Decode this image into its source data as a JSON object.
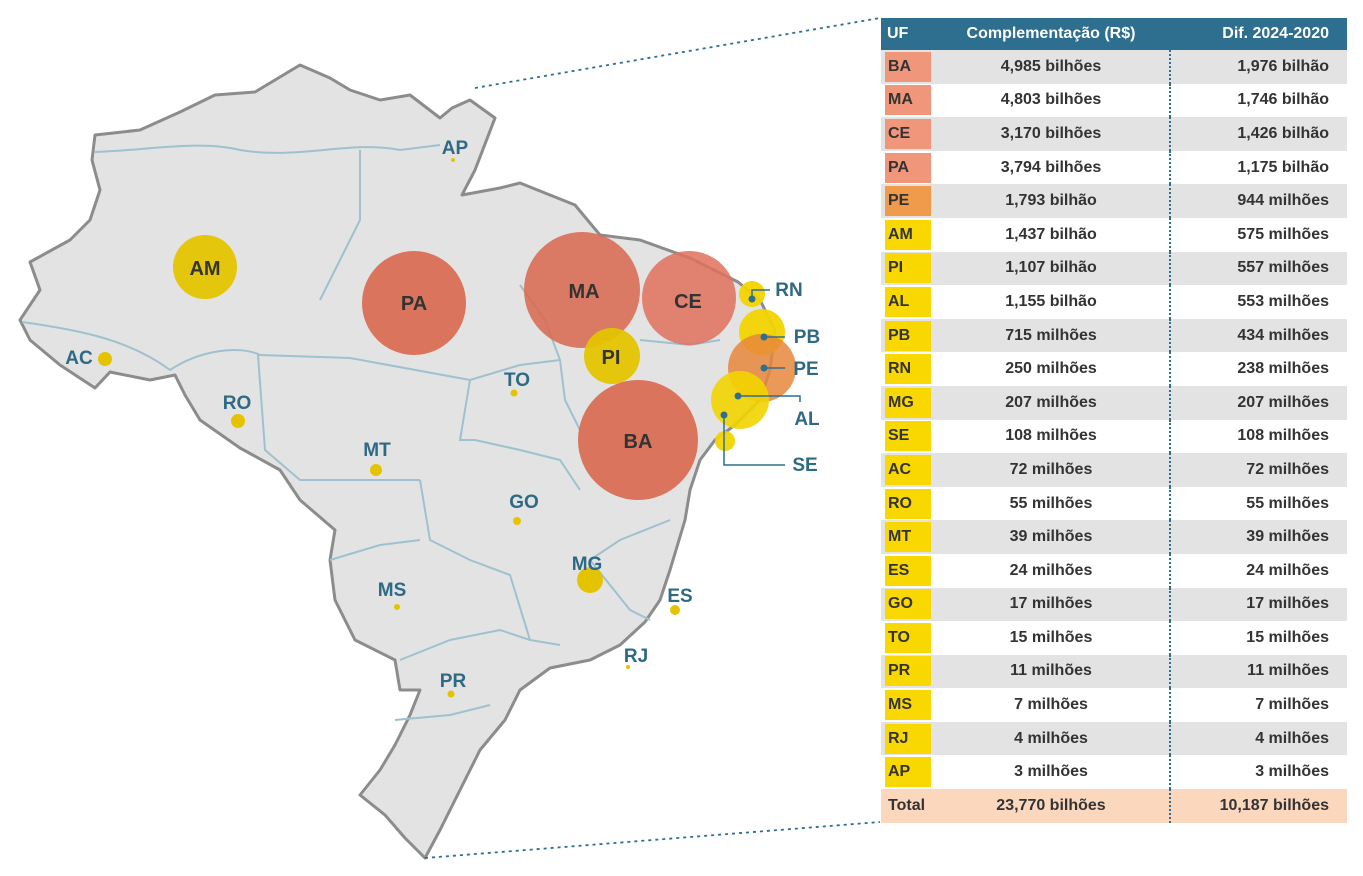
{
  "colors": {
    "header_bg": "#2e6e8e",
    "tier_high": "#f0967a",
    "tier_mid": "#f09a4c",
    "tier_low": "#f8d800",
    "bubble_high": "#d9674e",
    "bubble_mid": "#e8873c",
    "bubble_low": "#e4c400",
    "total_row": "#fbd7be",
    "map_fill": "#e3e3e3",
    "label": "#2e6a84"
  },
  "table": {
    "headers": [
      "UF",
      "Complementação (R$)",
      "Dif. 2024-2020"
    ],
    "rows": [
      {
        "uf": "BA",
        "comp": "4,985 bilhões",
        "dif": "1,976 bilhão",
        "tier": "high"
      },
      {
        "uf": "MA",
        "comp": "4,803 bilhões",
        "dif": "1,746 bilhão",
        "tier": "high"
      },
      {
        "uf": "CE",
        "comp": "3,170 bilhões",
        "dif": "1,426 bilhão",
        "tier": "high"
      },
      {
        "uf": "PA",
        "comp": "3,794 bilhões",
        "dif": "1,175 bilhão",
        "tier": "high"
      },
      {
        "uf": "PE",
        "comp": "1,793 bilhão",
        "dif": "944 milhões",
        "tier": "mid"
      },
      {
        "uf": "AM",
        "comp": "1,437 bilhão",
        "dif": "575 milhões",
        "tier": "low"
      },
      {
        "uf": "PI",
        "comp": "1,107 bilhão",
        "dif": "557 milhões",
        "tier": "low"
      },
      {
        "uf": "AL",
        "comp": "1,155 bilhão",
        "dif": "553 milhões",
        "tier": "low"
      },
      {
        "uf": "PB",
        "comp": "715 milhões",
        "dif": "434 milhões",
        "tier": "low"
      },
      {
        "uf": "RN",
        "comp": "250 milhões",
        "dif": "238 milhões",
        "tier": "low"
      },
      {
        "uf": "MG",
        "comp": "207 milhões",
        "dif": "207 milhões",
        "tier": "low"
      },
      {
        "uf": "SE",
        "comp": "108 milhões",
        "dif": "108 milhões",
        "tier": "low"
      },
      {
        "uf": "AC",
        "comp": "72 milhões",
        "dif": "72 milhões",
        "tier": "low"
      },
      {
        "uf": "RO",
        "comp": "55 milhões",
        "dif": "55 milhões",
        "tier": "low"
      },
      {
        "uf": "MT",
        "comp": "39 milhões",
        "dif": "39 milhões",
        "tier": "low"
      },
      {
        "uf": "ES",
        "comp": "24 milhões",
        "dif": "24 milhões",
        "tier": "low"
      },
      {
        "uf": "GO",
        "comp": "17 milhões",
        "dif": "17 milhões",
        "tier": "low"
      },
      {
        "uf": "TO",
        "comp": "15 milhões",
        "dif": "15 milhões",
        "tier": "low"
      },
      {
        "uf": "PR",
        "comp": "11 milhões",
        "dif": "11 milhões",
        "tier": "low"
      },
      {
        "uf": "MS",
        "comp": "7 milhões",
        "dif": "7 milhões",
        "tier": "low"
      },
      {
        "uf": "RJ",
        "comp": "4 milhões",
        "dif": "4 milhões",
        "tier": "low"
      },
      {
        "uf": "AP",
        "comp": "3 milhões",
        "dif": "3 milhões",
        "tier": "low"
      }
    ],
    "total": {
      "label": "Total",
      "comp": "23,770 bilhões",
      "dif": "10,187 bilhões"
    }
  },
  "map_labels": {
    "AM": "AM",
    "PA": "PA",
    "MA": "MA",
    "CE": "CE",
    "PI": "PI",
    "BA": "BA",
    "AP": "AP",
    "AC": "AC",
    "RO": "RO",
    "MT": "MT",
    "TO": "TO",
    "GO": "GO",
    "MG": "MG",
    "MS": "MS",
    "ES": "ES",
    "RJ": "RJ",
    "PR": "PR",
    "RN": "RN",
    "PB": "PB",
    "PE": "PE",
    "AL": "AL",
    "SE": "SE"
  }
}
